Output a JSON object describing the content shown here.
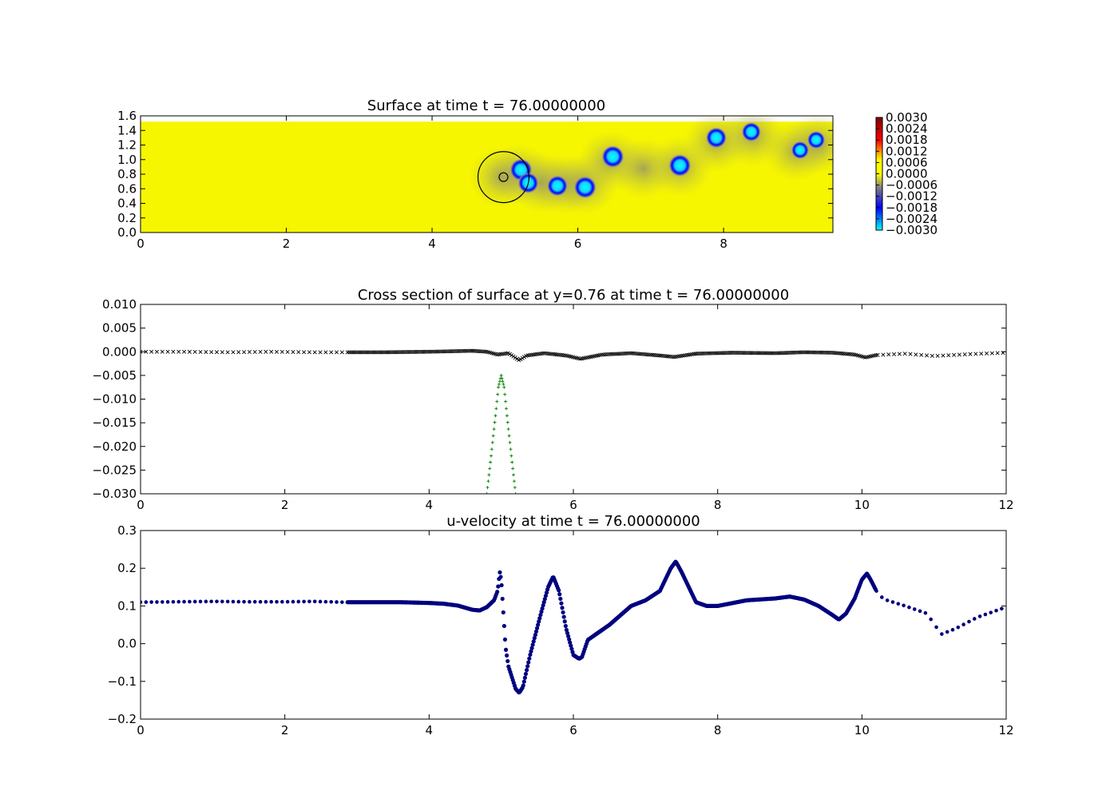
{
  "chart_data": [
    {
      "type": "heatmap",
      "title": "Surface at time t =    76.00000000",
      "xlim": [
        0,
        9.5
      ],
      "ylim": [
        0,
        1.6
      ],
      "xticks": [
        "0",
        "2",
        "4",
        "6",
        "8"
      ],
      "yticks": [
        "0.0",
        "0.2",
        "0.4",
        "0.6",
        "0.8",
        "1.0",
        "1.2",
        "1.4",
        "1.6"
      ],
      "domain_top": 1.52,
      "background_value": 0.0,
      "colorbar": {
        "range": [
          -0.003,
          0.003
        ],
        "ticks": [
          "0.0030",
          "0.0024",
          "0.0018",
          "0.0012",
          "0.0006",
          "0.0000",
          "−0.0006",
          "−0.0012",
          "−0.0018",
          "−0.0024",
          "−0.0030"
        ],
        "colors": [
          "#00ffff",
          "#0000ff",
          "#808080",
          "#ffff00",
          "#ff0000",
          "#800000"
        ]
      },
      "depressions": [
        {
          "x": 5.22,
          "y": 0.86,
          "value": -0.003
        },
        {
          "x": 5.32,
          "y": 0.68,
          "value": -0.0028
        },
        {
          "x": 5.72,
          "y": 0.64,
          "value": -0.0028
        },
        {
          "x": 6.1,
          "y": 0.62,
          "value": -0.003
        },
        {
          "x": 6.48,
          "y": 1.04,
          "value": -0.003
        },
        {
          "x": 7.4,
          "y": 0.92,
          "value": -0.003
        },
        {
          "x": 7.9,
          "y": 1.3,
          "value": -0.0028
        },
        {
          "x": 8.38,
          "y": 1.38,
          "value": -0.0026
        },
        {
          "x": 9.05,
          "y": 1.13,
          "value": -0.0024
        },
        {
          "x": 9.27,
          "y": 1.27,
          "value": -0.0024
        }
      ],
      "shadow_trail": [
        {
          "x": 4.95,
          "y": 0.76
        },
        {
          "x": 5.2,
          "y": 0.8
        },
        {
          "x": 5.5,
          "y": 0.68
        },
        {
          "x": 5.8,
          "y": 0.66
        },
        {
          "x": 6.1,
          "y": 0.66
        },
        {
          "x": 6.45,
          "y": 0.98
        },
        {
          "x": 6.9,
          "y": 0.88
        },
        {
          "x": 7.4,
          "y": 0.9
        },
        {
          "x": 7.9,
          "y": 1.24
        },
        {
          "x": 8.4,
          "y": 1.32
        },
        {
          "x": 9.0,
          "y": 1.12
        },
        {
          "x": 9.3,
          "y": 1.22
        }
      ],
      "object_circle": {
        "cx": 4.98,
        "cy": 0.76,
        "r_outer": 0.35,
        "r_inner": 0.06
      }
    },
    {
      "type": "scatter",
      "title": "Cross section of surface at y=0.76 at time t =    76.00000000",
      "xlim": [
        0,
        12
      ],
      "ylim": [
        -0.03,
        0.01
      ],
      "xticks": [
        "0",
        "2",
        "4",
        "6",
        "8",
        "10",
        "12"
      ],
      "yticks": [
        "0.010",
        "0.005",
        "0.000",
        "−0.005",
        "−0.010",
        "−0.015",
        "−0.020",
        "−0.025",
        "−0.030"
      ],
      "series": [
        {
          "marker": "x",
          "color": "#000000",
          "x": [
            0,
            0.6,
            1.2,
            1.8,
            2.4,
            2.8,
            3.4,
            4.0,
            4.6,
            4.8,
            4.95,
            5.1,
            5.25,
            5.35,
            5.6,
            5.9,
            6.1,
            6.4,
            6.8,
            7.2,
            7.4,
            7.7,
            8.2,
            8.8,
            9.2,
            9.6,
            9.9,
            10.05,
            10.2,
            10.6,
            11.0,
            11.5,
            12.0
          ],
          "y": [
            0.0,
            0.0,
            -0.0001,
            0.0,
            -0.0001,
            -0.0001,
            -0.0001,
            0.0,
            0.0002,
            0.0,
            -0.0006,
            -0.0003,
            -0.0018,
            -0.0008,
            -0.0003,
            -0.0008,
            -0.0015,
            -0.0006,
            -0.0003,
            -0.0008,
            -0.0011,
            -0.0004,
            -0.0002,
            -0.0003,
            -0.0001,
            -0.0002,
            -0.0006,
            -0.0012,
            -0.0007,
            -0.0004,
            -0.0009,
            -0.0005,
            -0.0002
          ],
          "dense_range": [
            2.8,
            10.2
          ]
        },
        {
          "marker": "+",
          "color": "#007f00",
          "x": [
            4.8,
            4.86,
            4.92,
            4.96,
            5.0,
            5.04,
            5.08,
            5.14,
            5.2
          ],
          "y": [
            -0.03,
            -0.022,
            -0.0135,
            -0.0075,
            -0.005,
            -0.0075,
            -0.0135,
            -0.022,
            -0.03
          ]
        }
      ]
    },
    {
      "type": "scatter",
      "title": "u-velocity at time t =    76.00000000",
      "xlim": [
        0,
        12
      ],
      "ylim": [
        -0.2,
        0.3
      ],
      "xticks": [
        "0",
        "2",
        "4",
        "6",
        "8",
        "10",
        "12"
      ],
      "yticks": [
        "0.3",
        "0.2",
        "0.1",
        "0.0",
        "−0.1",
        "−0.2"
      ],
      "series": [
        {
          "marker": "o",
          "color": "#00007f",
          "x": [
            0,
            0.5,
            1.0,
            1.5,
            2.0,
            2.4,
            2.8,
            3.2,
            3.6,
            4.0,
            4.2,
            4.4,
            4.6,
            4.7,
            4.8,
            4.9,
            4.95,
            4.98,
            5.0,
            5.03,
            5.06,
            5.1,
            5.15,
            5.2,
            5.25,
            5.3,
            5.4,
            5.55,
            5.65,
            5.72,
            5.8,
            5.9,
            6.0,
            6.08,
            6.12,
            6.2,
            6.35,
            6.5,
            6.8,
            7.0,
            7.2,
            7.35,
            7.42,
            7.5,
            7.7,
            7.85,
            8.0,
            8.4,
            8.8,
            9.0,
            9.2,
            9.4,
            9.6,
            9.68,
            9.78,
            9.9,
            10.0,
            10.07,
            10.12,
            10.2,
            10.3,
            10.6,
            10.9,
            11.1,
            11.3,
            11.6,
            12.0
          ],
          "y": [
            0.11,
            0.111,
            0.112,
            0.111,
            0.111,
            0.112,
            0.11,
            0.11,
            0.11,
            0.108,
            0.106,
            0.101,
            0.09,
            0.088,
            0.097,
            0.115,
            0.14,
            0.19,
            0.17,
            0.08,
            -0.01,
            -0.06,
            -0.09,
            -0.12,
            -0.13,
            -0.115,
            -0.03,
            0.08,
            0.15,
            0.178,
            0.14,
            0.04,
            -0.03,
            -0.04,
            -0.035,
            0.01,
            0.03,
            0.05,
            0.1,
            0.115,
            0.14,
            0.2,
            0.218,
            0.19,
            0.11,
            0.1,
            0.1,
            0.115,
            0.12,
            0.125,
            0.117,
            0.1,
            0.075,
            0.064,
            0.08,
            0.12,
            0.17,
            0.186,
            0.17,
            0.14,
            0.118,
            0.1,
            0.08,
            0.025,
            0.04,
            0.07,
            0.097
          ],
          "dense_range": [
            2.8,
            10.2
          ]
        }
      ]
    }
  ]
}
